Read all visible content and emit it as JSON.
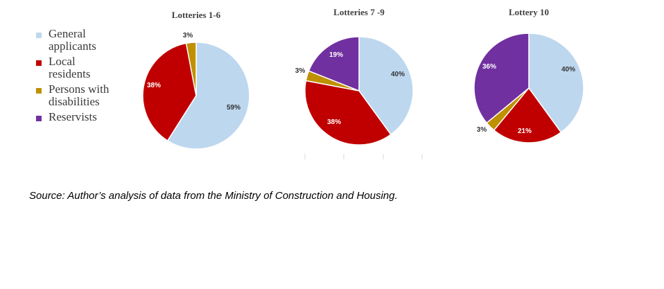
{
  "legend": [
    {
      "label": "General applicants",
      "display": "General\napplicants",
      "color": "#BDD7EE"
    },
    {
      "label": "Local residents",
      "display": "Local\nresidents",
      "color": "#C00000"
    },
    {
      "label": "Persons with disabilities",
      "display": "Persons with\ndisabilities",
      "color": "#BF9000"
    },
    {
      "label": "Reservists",
      "display": "Reservists",
      "color": "#7030A0"
    }
  ],
  "chart_data": [
    {
      "type": "pie",
      "title": "Lotteries 1-6",
      "categories": [
        "General applicants",
        "Local residents",
        "Persons with disabilities",
        "Reservists"
      ],
      "values": [
        59,
        38,
        3,
        0
      ],
      "labels": [
        "59%",
        "38%",
        "3%",
        ""
      ]
    },
    {
      "type": "pie",
      "title": "Lotteries 7 -9",
      "categories": [
        "General applicants",
        "Local residents",
        "Persons with disabilities",
        "Reservists"
      ],
      "values": [
        40,
        38,
        3,
        19
      ],
      "labels": [
        "40%",
        "38%",
        "3%",
        "19%"
      ]
    },
    {
      "type": "pie",
      "title": "Lottery 10",
      "categories": [
        "General applicants",
        "Local residents",
        "Persons with disabilities",
        "Reservists"
      ],
      "values": [
        40,
        21,
        3,
        36
      ],
      "labels": [
        "40%",
        "21%",
        "3%",
        "36%"
      ]
    }
  ],
  "source": "Source: Author’s analysis of data from the Ministry of Construction and Housing."
}
